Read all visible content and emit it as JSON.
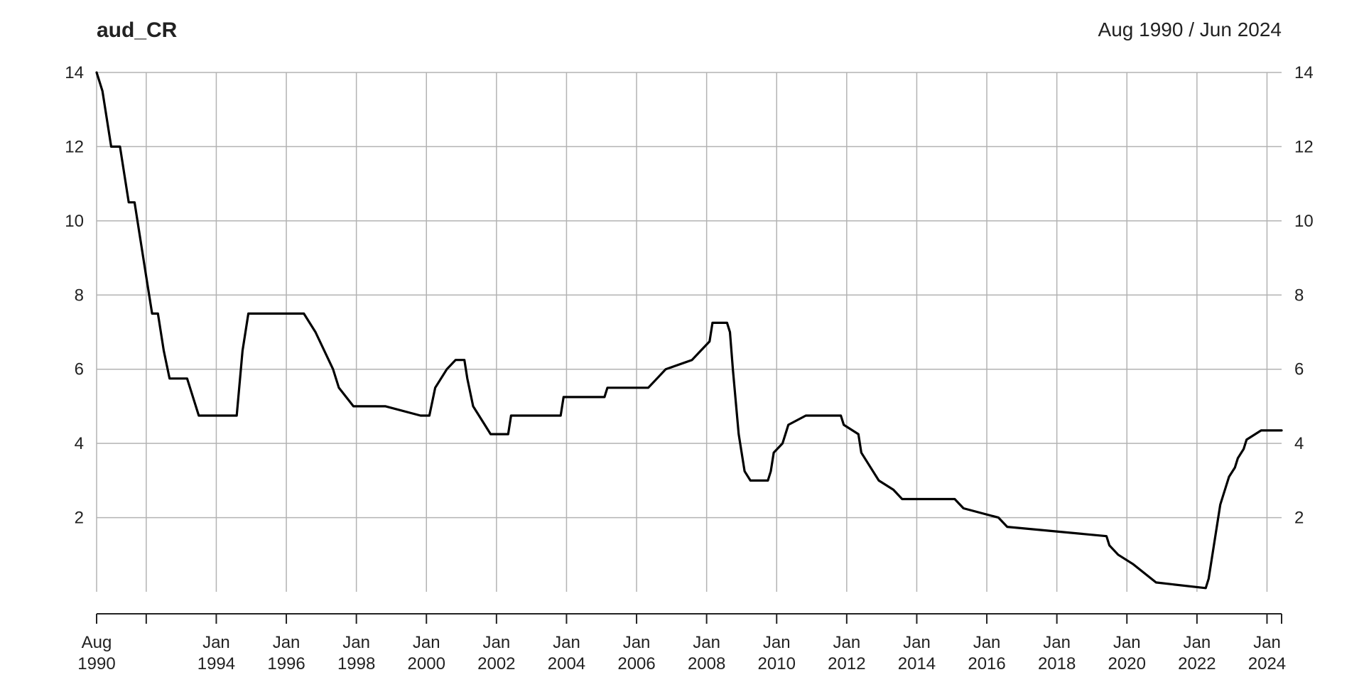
{
  "chart_data": {
    "type": "line",
    "title": "aud_CR",
    "date_range_label": "Aug 1990 / Jun 2024",
    "xlabel": "",
    "ylabel": "",
    "xlim": [
      "1990-08",
      "2024-06"
    ],
    "ylim": [
      0,
      14
    ],
    "y_ticks": [
      2,
      4,
      6,
      8,
      10,
      12,
      14
    ],
    "x_ticks": [
      {
        "date": "1990-08",
        "line1": "Aug",
        "line2": "1990"
      },
      {
        "date": "1992-01",
        "line1": "",
        "line2": ""
      },
      {
        "date": "1994-01",
        "line1": "Jan",
        "line2": "1994"
      },
      {
        "date": "1996-01",
        "line1": "Jan",
        "line2": "1996"
      },
      {
        "date": "1998-01",
        "line1": "Jan",
        "line2": "1998"
      },
      {
        "date": "2000-01",
        "line1": "Jan",
        "line2": "2000"
      },
      {
        "date": "2002-01",
        "line1": "Jan",
        "line2": "2002"
      },
      {
        "date": "2004-01",
        "line1": "Jan",
        "line2": "2004"
      },
      {
        "date": "2006-01",
        "line1": "Jan",
        "line2": "2006"
      },
      {
        "date": "2008-01",
        "line1": "Jan",
        "line2": "2008"
      },
      {
        "date": "2010-01",
        "line1": "Jan",
        "line2": "2010"
      },
      {
        "date": "2012-01",
        "line1": "Jan",
        "line2": "2012"
      },
      {
        "date": "2014-01",
        "line1": "Jan",
        "line2": "2014"
      },
      {
        "date": "2016-01",
        "line1": "Jan",
        "line2": "2016"
      },
      {
        "date": "2018-01",
        "line1": "Jan",
        "line2": "2018"
      },
      {
        "date": "2020-01",
        "line1": "Jan",
        "line2": "2020"
      },
      {
        "date": "2022-01",
        "line1": "Jan",
        "line2": "2022"
      },
      {
        "date": "2024-01",
        "line1": "Jan",
        "line2": "2024"
      }
    ],
    "grid": true,
    "line_color": "#000000",
    "grid_color": "#b3b3b3",
    "series": [
      {
        "x": [
          "1990-08",
          "1990-10",
          "1991-01",
          "1991-04",
          "1991-07",
          "1991-09",
          "1991-11",
          "1992-01",
          "1992-03",
          "1992-05",
          "1992-07",
          "1992-09",
          "1992-11",
          "1993-03",
          "1993-07",
          "1994-08",
          "1994-10",
          "1994-12",
          "1996-06",
          "1996-07",
          "1996-11",
          "1997-05",
          "1997-07",
          "1997-12",
          "1998-11",
          "1999-11",
          "2000-02",
          "2000-04",
          "2000-08",
          "2000-11",
          "2001-02",
          "2001-03",
          "2001-05",
          "2001-09",
          "2001-11",
          "2002-05",
          "2002-06",
          "2003-11",
          "2003-12",
          "2005-02",
          "2005-03",
          "2006-05",
          "2006-08",
          "2006-11",
          "2007-08",
          "2007-11",
          "2008-02",
          "2008-03",
          "2008-08",
          "2008-09",
          "2008-10",
          "2008-12",
          "2009-02",
          "2009-04",
          "2009-10",
          "2009-11",
          "2009-12",
          "2010-03",
          "2010-04",
          "2010-05",
          "2010-11",
          "2011-11",
          "2011-12",
          "2012-05",
          "2012-06",
          "2012-10",
          "2012-12",
          "2013-05",
          "2013-08",
          "2015-02",
          "2015-05",
          "2016-05",
          "2016-08",
          "2019-06",
          "2019-07",
          "2019-10",
          "2020-03",
          "2020-11",
          "2022-04",
          "2022-05",
          "2022-06",
          "2022-07",
          "2022-08",
          "2022-09",
          "2022-10",
          "2022-11",
          "2022-12",
          "2023-02",
          "2023-03",
          "2023-05",
          "2023-06",
          "2023-11",
          "2024-06"
        ],
        "y": [
          14.0,
          13.5,
          12.0,
          12.0,
          10.5,
          10.5,
          9.5,
          8.5,
          7.5,
          7.5,
          6.5,
          5.75,
          5.75,
          5.75,
          4.75,
          4.75,
          6.5,
          7.5,
          7.5,
          7.5,
          7.0,
          6.0,
          5.5,
          5.0,
          5.0,
          4.75,
          4.75,
          5.5,
          6.0,
          6.25,
          6.25,
          5.75,
          5.0,
          4.5,
          4.25,
          4.25,
          4.75,
          4.75,
          5.25,
          5.25,
          5.5,
          5.5,
          5.75,
          6.0,
          6.25,
          6.5,
          6.75,
          7.25,
          7.25,
          7.0,
          6.0,
          4.25,
          3.25,
          3.0,
          3.0,
          3.25,
          3.75,
          4.0,
          4.25,
          4.5,
          4.75,
          4.75,
          4.5,
          4.25,
          3.75,
          3.25,
          3.0,
          2.75,
          2.5,
          2.5,
          2.25,
          2.0,
          1.75,
          1.5,
          1.25,
          1.0,
          0.75,
          0.25,
          0.1,
          0.35,
          0.85,
          1.35,
          1.85,
          2.35,
          2.6,
          2.85,
          3.1,
          3.35,
          3.6,
          3.85,
          4.1,
          4.35,
          4.35
        ]
      }
    ]
  }
}
